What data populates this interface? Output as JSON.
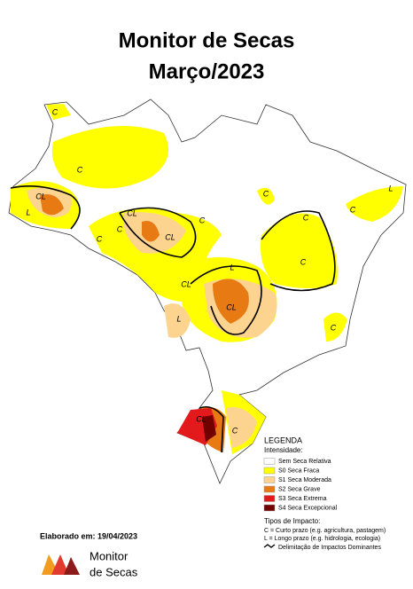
{
  "header": {
    "title": "Monitor de Secas",
    "subtitle": "Março/2023"
  },
  "map": {
    "labels": [
      "C",
      "C",
      "CL",
      "L",
      "CL",
      "C",
      "C",
      "C",
      "CL",
      "C",
      "C",
      "L",
      "CL",
      "CL",
      "L",
      "C",
      "C",
      "L",
      "C",
      "CL",
      "C"
    ]
  },
  "legend": {
    "title": "LEGENDA",
    "intensity_title": "Intensidade:",
    "intensity": [
      {
        "label": "Sem Seca Relativa",
        "color": "#ffffff"
      },
      {
        "label": "S0 Seca Fraca",
        "color": "#ffff00"
      },
      {
        "label": "S1 Seca Moderada",
        "color": "#fcd38f"
      },
      {
        "label": "S2 Seca Grave",
        "color": "#e87a14"
      },
      {
        "label": "S3 Seca Extrema",
        "color": "#e31a1c"
      },
      {
        "label": "S4 Seca Excepcional",
        "color": "#730000"
      }
    ],
    "impact_title": "Tipos de Impacto:",
    "impact": [
      "C = Curto prazo (e.g. agricultura, pastagem)",
      "L = Longo prazo (e.g. hidrologia, ecologia)"
    ],
    "boundary": "Delimitação de Impactos Dominantes"
  },
  "footer": {
    "date": "Elaborado em: 19/04/2023",
    "logo": [
      "Monitor",
      "de Secas"
    ]
  }
}
